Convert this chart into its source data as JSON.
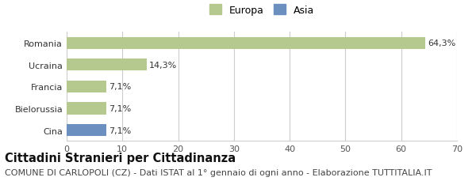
{
  "categories": [
    "Romania",
    "Ucraina",
    "Francia",
    "Bielorussia",
    "Cina"
  ],
  "values": [
    64.3,
    14.3,
    7.1,
    7.1,
    7.1
  ],
  "bar_colors": [
    "#b5c98e",
    "#b5c98e",
    "#b5c98e",
    "#b5c98e",
    "#6b8fbf"
  ],
  "labels": [
    "64,3%",
    "14,3%",
    "7,1%",
    "7,1%",
    "7,1%"
  ],
  "legend_entries": [
    {
      "label": "Europa",
      "color": "#b5c98e"
    },
    {
      "label": "Asia",
      "color": "#6b8fbf"
    }
  ],
  "xlim": [
    0,
    70
  ],
  "xticks": [
    0,
    10,
    20,
    30,
    40,
    50,
    60,
    70
  ],
  "title": "Cittadini Stranieri per Cittadinanza",
  "subtitle": "COMUNE DI CARLOPOLI (CZ) - Dati ISTAT al 1° gennaio di ogni anno - Elaborazione TUTTITALIA.IT",
  "background_color": "#ffffff",
  "grid_color": "#cccccc",
  "bar_height": 0.55,
  "title_fontsize": 10.5,
  "subtitle_fontsize": 8,
  "label_fontsize": 8,
  "tick_fontsize": 8,
  "legend_fontsize": 9
}
